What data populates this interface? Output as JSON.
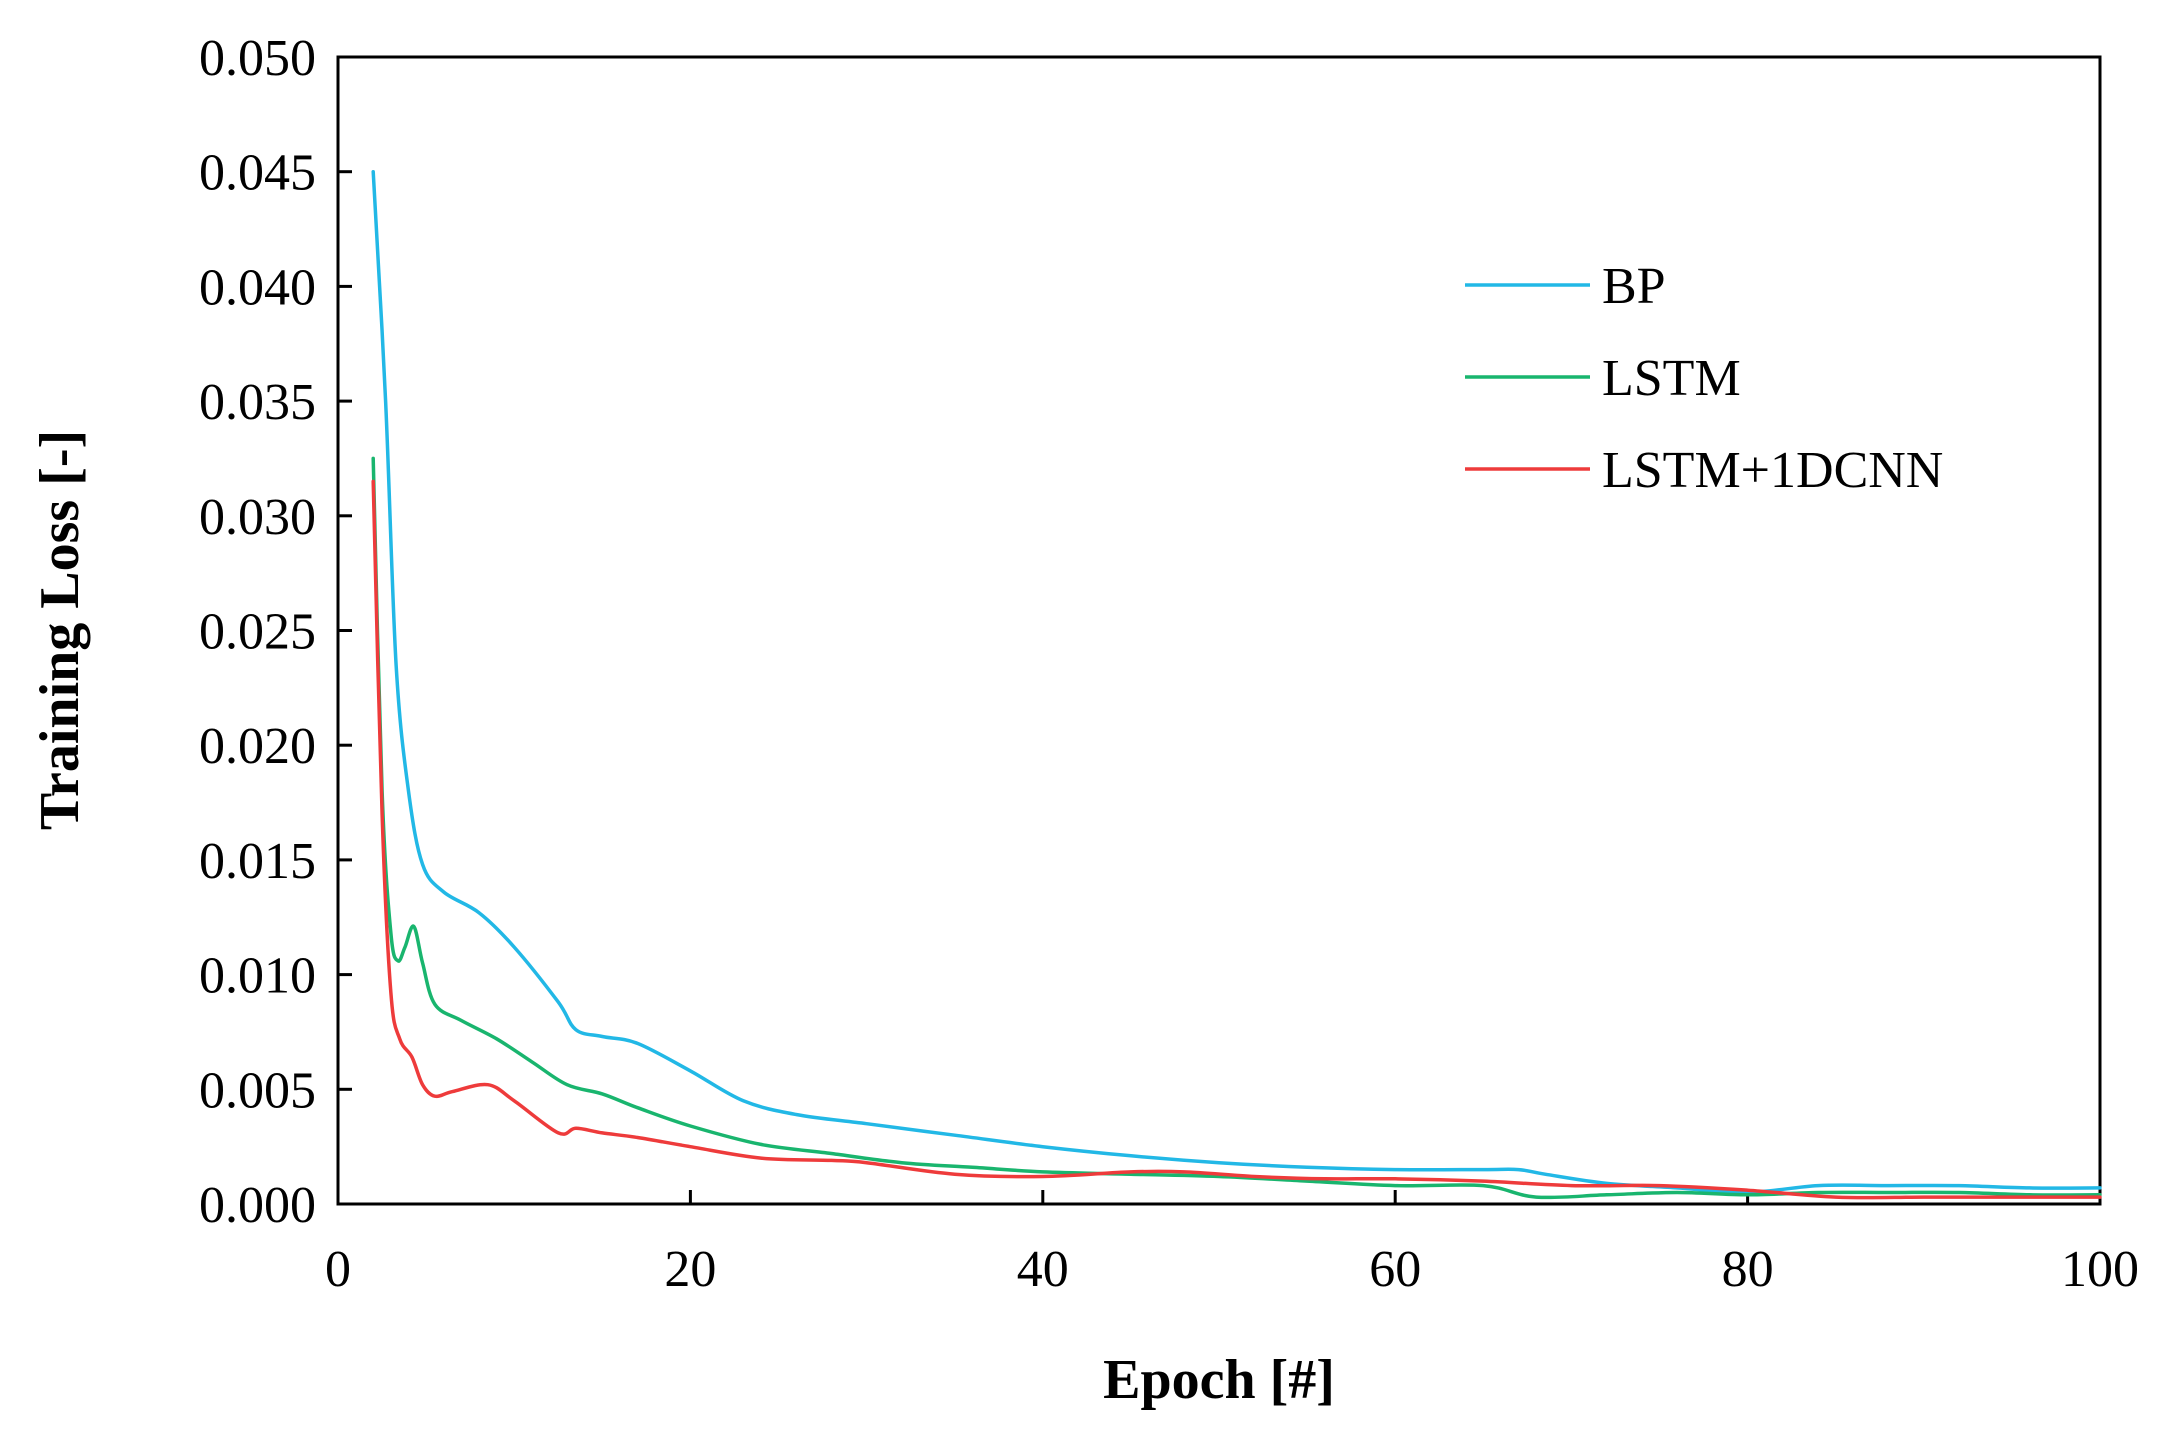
{
  "chart_data": {
    "type": "line",
    "title": "",
    "xlabel": "Epoch [#]",
    "ylabel": "Training Loss [-]",
    "xlim": [
      0,
      100
    ],
    "ylim": [
      0,
      0.05
    ],
    "xticks": [
      "0",
      "20",
      "40",
      "60",
      "80",
      "100"
    ],
    "yticks": [
      "0.000",
      "0.005",
      "0.010",
      "0.015",
      "0.020",
      "0.025",
      "0.030",
      "0.035",
      "0.040",
      "0.045",
      "0.050"
    ],
    "grid": false,
    "legend_position": "top-right",
    "series": [
      {
        "name": "BP",
        "color": "#22b8e6",
        "x": [
          2,
          2.7,
          3.3,
          4,
          4.8,
          6,
          8,
          10,
          12.5,
          13.5,
          15,
          17,
          20,
          23,
          26,
          30,
          35,
          40,
          45,
          50,
          55,
          60,
          65,
          67,
          68.5,
          72,
          76,
          80,
          84,
          88,
          92,
          96,
          100
        ],
        "y": [
          0.045,
          0.035,
          0.0235,
          0.018,
          0.0148,
          0.0136,
          0.0127,
          0.0112,
          0.0088,
          0.0076,
          0.0073,
          0.007,
          0.0058,
          0.0045,
          0.0039,
          0.0035,
          0.003,
          0.0025,
          0.0021,
          0.0018,
          0.0016,
          0.0015,
          0.0015,
          0.0015,
          0.0013,
          0.0009,
          0.0007,
          0.0005,
          0.0008,
          0.0008,
          0.0008,
          0.0007,
          0.0007
        ]
      },
      {
        "name": "LSTM",
        "color": "#19b56e",
        "x": [
          2,
          2.5,
          3,
          3.4,
          3.8,
          4.3,
          4.8,
          5.5,
          7,
          9,
          11,
          13,
          15,
          17,
          20,
          24,
          28,
          32,
          36,
          40,
          45,
          50,
          55,
          60,
          65,
          68,
          72,
          76,
          80,
          84,
          88,
          92,
          96,
          100
        ],
        "y": [
          0.0325,
          0.018,
          0.0118,
          0.0106,
          0.0112,
          0.0121,
          0.0105,
          0.0087,
          0.008,
          0.0072,
          0.0062,
          0.0052,
          0.0048,
          0.0042,
          0.0034,
          0.0026,
          0.0022,
          0.0018,
          0.0016,
          0.0014,
          0.0013,
          0.0012,
          0.001,
          0.0008,
          0.0008,
          0.0003,
          0.0004,
          0.0005,
          0.0004,
          0.0005,
          0.0005,
          0.0005,
          0.0004,
          0.0004
        ]
      },
      {
        "name": "LSTM+1DCNN",
        "color": "#ee3b3b",
        "x": [
          2,
          2.5,
          3,
          3.5,
          4.2,
          4.8,
          5.5,
          6.5,
          8.5,
          10,
          12.5,
          13.5,
          15,
          17,
          20,
          24,
          28,
          30,
          35,
          40,
          45,
          48,
          52,
          56,
          60,
          65,
          70,
          75,
          80,
          85,
          90,
          95,
          100
        ],
        "y": [
          0.0315,
          0.017,
          0.0092,
          0.0072,
          0.0064,
          0.0052,
          0.0047,
          0.0049,
          0.0052,
          0.0045,
          0.0031,
          0.0033,
          0.0031,
          0.0029,
          0.0025,
          0.002,
          0.0019,
          0.0018,
          0.0013,
          0.0012,
          0.0014,
          0.0014,
          0.0012,
          0.0011,
          0.0011,
          0.001,
          0.0008,
          0.0008,
          0.0006,
          0.0003,
          0.0003,
          0.0003,
          0.0003
        ]
      }
    ]
  }
}
